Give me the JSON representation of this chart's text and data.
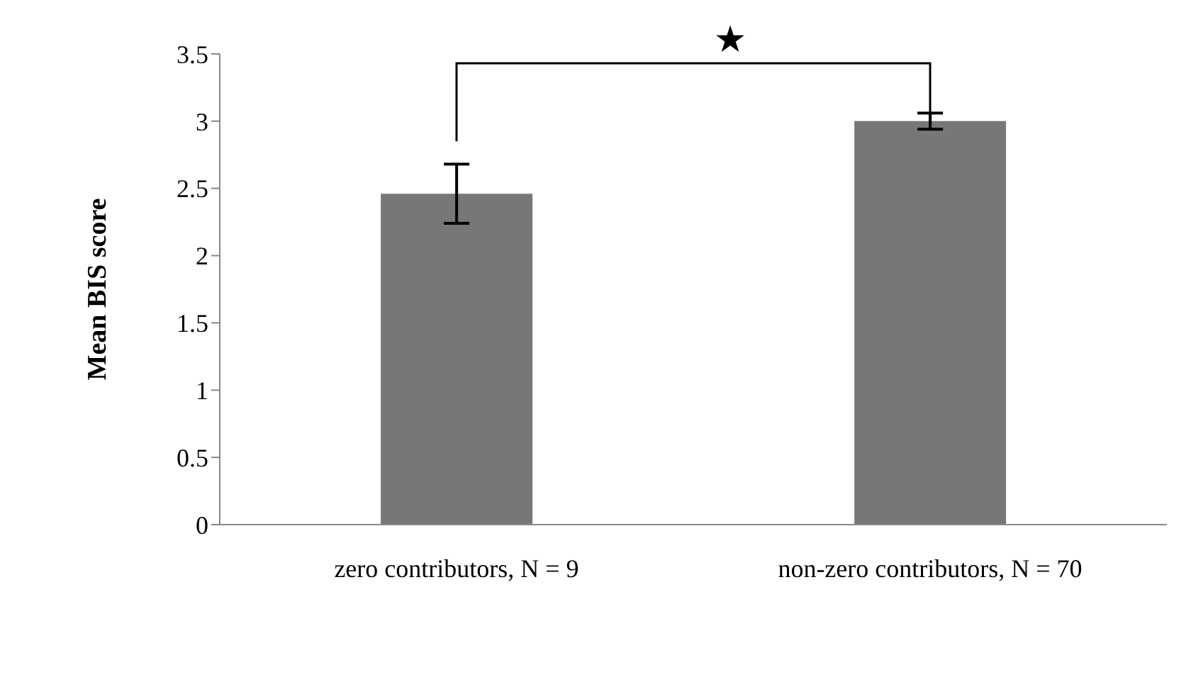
{
  "chart_data": {
    "type": "bar",
    "ylabel": "Mean BIS score",
    "categories": [
      "zero contributors, N = 9",
      "non-zero contributors, N = 70"
    ],
    "values": [
      2.46,
      3.0
    ],
    "errors": [
      0.22,
      0.06
    ],
    "color": "#777777",
    "ylim": [
      0,
      3.5
    ],
    "yticks": [
      0,
      0.5,
      1,
      1.5,
      2,
      2.5,
      3,
      3.5
    ],
    "grid": false,
    "legend": false,
    "annotations": [
      "★"
    ]
  }
}
